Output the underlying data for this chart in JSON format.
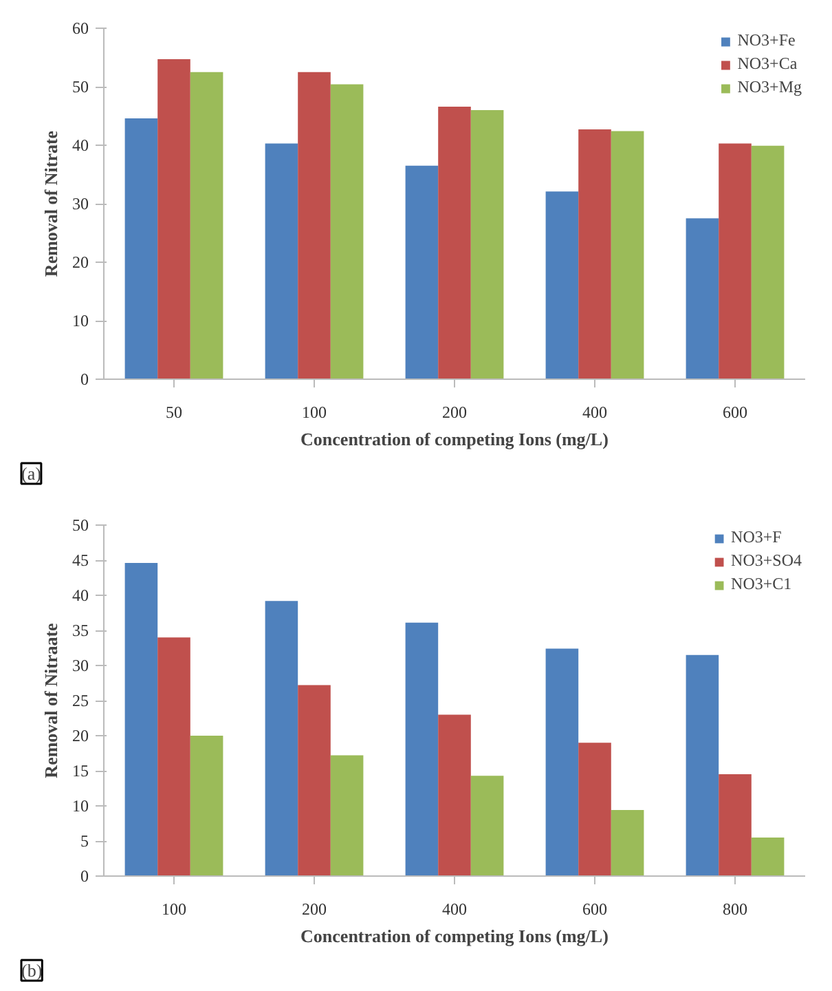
{
  "chart_data": [
    {
      "type": "bar",
      "xlabel": "Concentration of competing Ions (mg/L)",
      "ylabel": "Removal of Nitrate",
      "categories": [
        "50",
        "100",
        "200",
        "400",
        "600"
      ],
      "ylim": [
        0,
        60
      ],
      "yticks": [
        0,
        10,
        20,
        30,
        40,
        50,
        60
      ],
      "grid": false,
      "legend": "top right",
      "annotations": [
        "(a)"
      ],
      "series": [
        {
          "name": "NO3+Fe",
          "color": "#4f81bd",
          "values": [
            44.6,
            40.3,
            36.5,
            32.1,
            27.5
          ]
        },
        {
          "name": "NO3+Ca",
          "color": "#c0504d",
          "values": [
            54.7,
            52.5,
            46.6,
            42.7,
            40.3
          ]
        },
        {
          "name": "NO3+Mg",
          "color": "#9bbb59",
          "values": [
            52.5,
            50.4,
            46.0,
            42.4,
            39.9
          ]
        }
      ]
    },
    {
      "type": "bar",
      "xlabel": "Concentration of competing Ions (mg/L)",
      "ylabel": "Removal of Nitraate",
      "categories": [
        "100",
        "200",
        "400",
        "600",
        "800"
      ],
      "ylim": [
        0,
        50
      ],
      "yticks": [
        0,
        5,
        10,
        15,
        20,
        25,
        30,
        35,
        40,
        45,
        50
      ],
      "grid": false,
      "legend": "top right",
      "annotations": [
        "(b)"
      ],
      "series": [
        {
          "name": "NO3+F",
          "color": "#4f81bd",
          "values": [
            44.6,
            39.2,
            36.1,
            32.4,
            31.5
          ]
        },
        {
          "name": "NO3+SO4",
          "color": "#c0504d",
          "values": [
            34.0,
            27.2,
            23.0,
            19.0,
            14.5
          ]
        },
        {
          "name": "NO3+C1",
          "color": "#9bbb59",
          "values": [
            20.0,
            17.2,
            14.3,
            9.4,
            5.5
          ]
        }
      ]
    }
  ]
}
